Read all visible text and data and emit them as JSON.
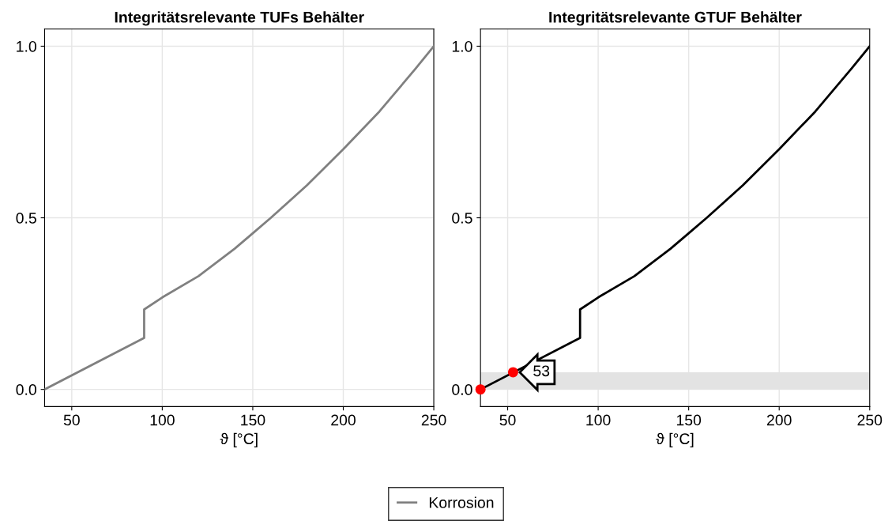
{
  "chart_data": [
    {
      "type": "line",
      "title": "Integritätsrelevante TUFs Behälter",
      "xlabel": "ϑ [°C]",
      "xlim": [
        35,
        250
      ],
      "xticks": [
        50,
        100,
        150,
        200,
        250
      ],
      "ylim": [
        -0.05,
        1.05
      ],
      "yticks": [
        {
          "value": 0,
          "label": "0.0"
        },
        {
          "value": 0.5,
          "label": "0.5"
        },
        {
          "value": 1,
          "label": "1.0"
        }
      ],
      "grid": true,
      "legend": "bottom",
      "marker": "none",
      "series": [
        {
          "name": "Korrosion",
          "color": "#808080",
          "x": [
            35,
            90,
            90,
            100,
            120,
            140,
            150,
            160,
            180,
            200,
            220,
            240,
            250
          ],
          "values": [
            0,
            0.15,
            0.233,
            0.268,
            0.33,
            0.41,
            0.455,
            0.5,
            0.595,
            0.7,
            0.81,
            0.935,
            1.0
          ]
        }
      ]
    },
    {
      "type": "line",
      "title": "Integritätsrelevante GTUF Behälter",
      "xlabel": "ϑ [°C]",
      "xlim": [
        35,
        250
      ],
      "xticks": [
        50,
        100,
        150,
        200,
        250
      ],
      "ylim": [
        -0.05,
        1.05
      ],
      "yticks": [
        {
          "value": 0,
          "label": "0.0"
        },
        {
          "value": 0.5,
          "label": "0.5"
        },
        {
          "value": 1,
          "label": "1.0"
        }
      ],
      "grid": true,
      "bands": [
        {
          "axis": "y",
          "from": 0,
          "to": 0.05,
          "color": "#e3e3e3"
        }
      ],
      "annotations": [
        {
          "text": "53",
          "x": 53,
          "y": 0.05
        }
      ],
      "series": [
        {
          "color": "#000000",
          "x": [
            35,
            90,
            90,
            100,
            120,
            140,
            150,
            160,
            180,
            200,
            220,
            240,
            250
          ],
          "values": [
            0,
            0.15,
            0.233,
            0.268,
            0.33,
            0.41,
            0.455,
            0.5,
            0.595,
            0.7,
            0.81,
            0.935,
            1.0
          ]
        },
        {
          "type": "scatter",
          "marker": "circle",
          "color": "#ff0000",
          "x": [
            35,
            53
          ],
          "values": [
            0,
            0.05
          ]
        }
      ]
    }
  ]
}
